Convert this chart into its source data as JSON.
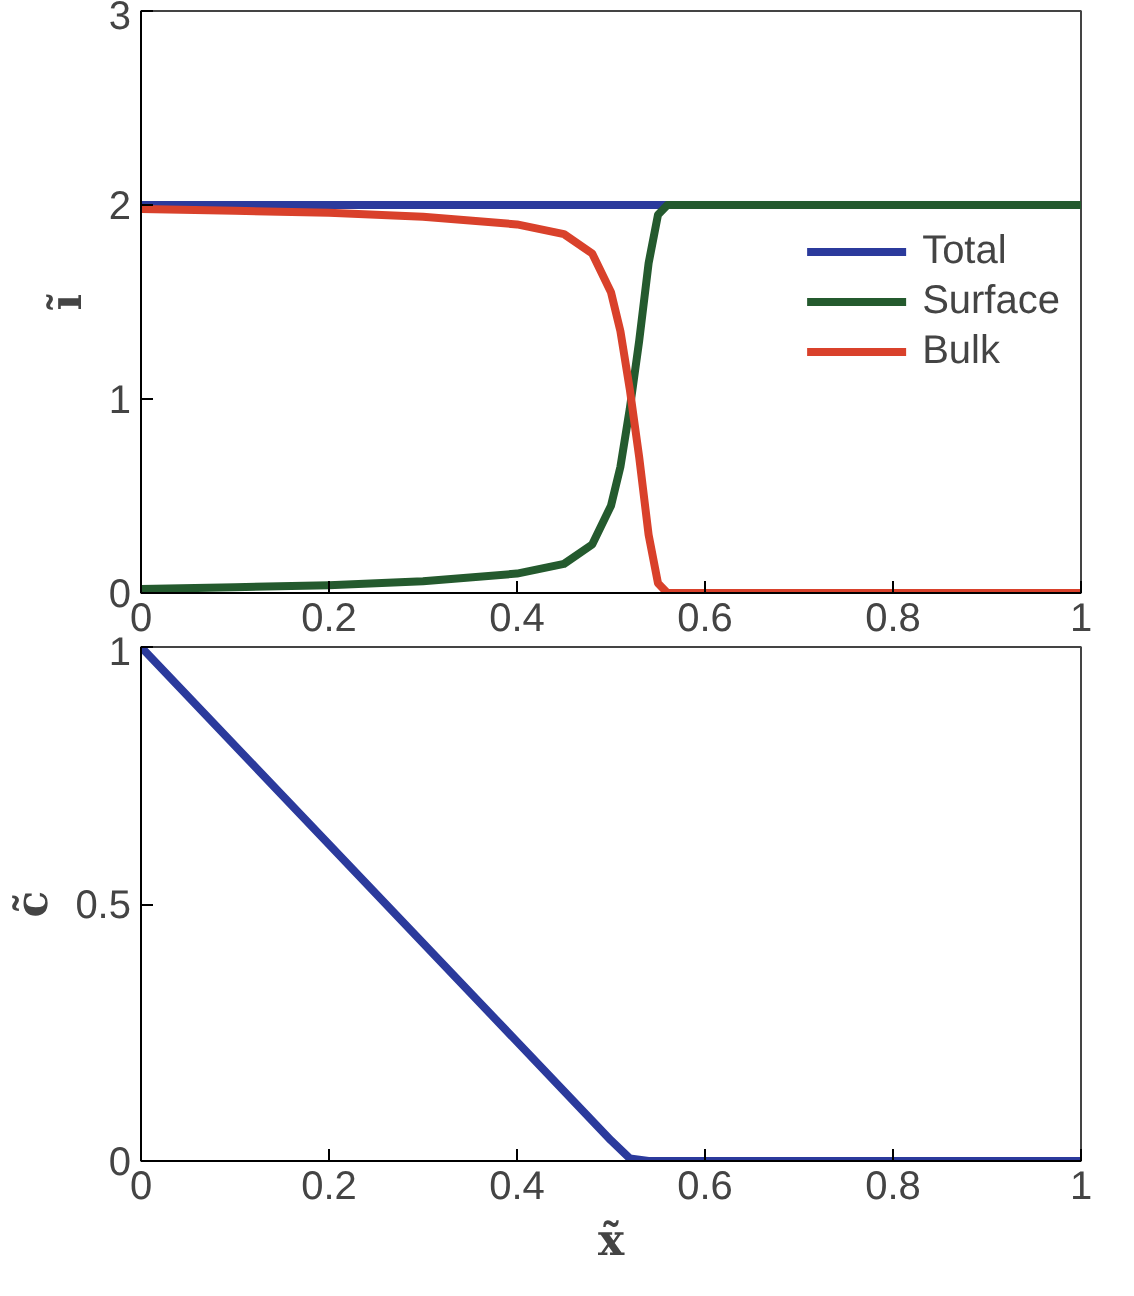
{
  "chart_data": [
    {
      "type": "line",
      "ylabel": "ĩ",
      "xlim": [
        0,
        1
      ],
      "ylim": [
        0,
        3
      ],
      "xticks": [
        0,
        0.2,
        0.4,
        0.6,
        0.8,
        1
      ],
      "yticks": [
        0,
        1,
        2,
        3
      ],
      "legend": "right",
      "grid": false,
      "x": [
        0,
        0.1,
        0.2,
        0.3,
        0.4,
        0.45,
        0.48,
        0.5,
        0.51,
        0.52,
        0.53,
        0.54,
        0.55,
        0.56,
        0.6,
        0.8,
        1
      ],
      "series": [
        {
          "name": "Total",
          "color": "#2b3a9c",
          "values": [
            2,
            2,
            2,
            2,
            2,
            2,
            2,
            2,
            2,
            2,
            2,
            2,
            2,
            2,
            null,
            null,
            null
          ]
        },
        {
          "name": "Surface",
          "color": "#245a2e",
          "values": [
            0.02,
            0.03,
            0.04,
            0.06,
            0.1,
            0.15,
            0.25,
            0.45,
            0.65,
            0.95,
            1.3,
            1.7,
            1.95,
            2,
            2,
            2,
            2
          ]
        },
        {
          "name": "Bulk",
          "color": "#d9412b",
          "values": [
            1.98,
            1.97,
            1.96,
            1.94,
            1.9,
            1.85,
            1.75,
            1.55,
            1.35,
            1.05,
            0.7,
            0.3,
            0.05,
            0,
            0,
            0,
            0
          ]
        }
      ]
    },
    {
      "type": "line",
      "xlabel": "x̃",
      "ylabel": "c̃",
      "xlim": [
        0,
        1
      ],
      "ylim": [
        0,
        1
      ],
      "xticks": [
        0,
        0.2,
        0.4,
        0.6,
        0.8,
        1
      ],
      "yticks": [
        0,
        0.5,
        1
      ],
      "grid": false,
      "x": [
        0,
        0.5,
        0.52,
        0.54,
        1
      ],
      "series": [
        {
          "color": "#2b3a9c",
          "values": [
            1,
            0.04,
            0.005,
            0,
            0
          ]
        }
      ]
    }
  ]
}
